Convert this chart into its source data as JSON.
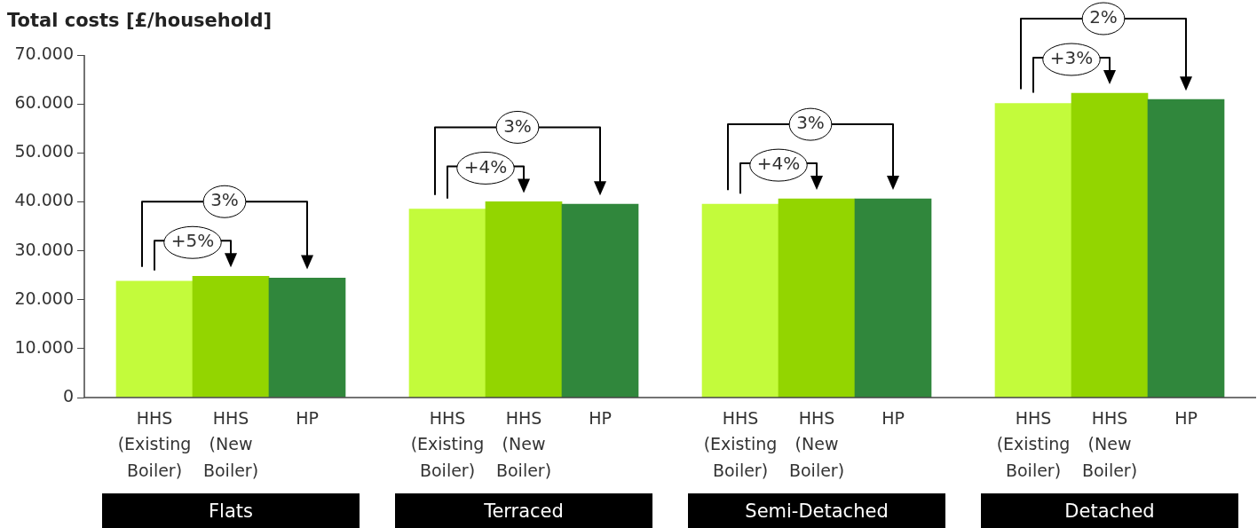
{
  "chart_data": [
    {
      "type": "bar",
      "title": "Flats",
      "ylabel": "Total costs [£/household]",
      "categories": [
        "HHS (Existing Boiler)",
        "HHS (New Boiler)",
        "HP"
      ],
      "values": [
        23800,
        24800,
        24400
      ],
      "colors": [
        "#c3fb3b",
        "#93d500",
        "#30873c"
      ],
      "ylim": [
        0,
        70000
      ],
      "yticks": [
        0,
        {
          "value": 10000,
          "label": "10.000"
        },
        {
          "value": 20000,
          "label": "20.000"
        },
        {
          "value": 30000,
          "label": "30.000"
        },
        {
          "value": 40000,
          "label": "40.000"
        },
        {
          "value": 50000,
          "label": "50.000"
        },
        {
          "value": 60000,
          "label": "60.000"
        },
        {
          "value": 70000,
          "label": "70.000"
        }
      ],
      "grid": false,
      "legend": false,
      "annotations": [
        "+5%",
        "3%"
      ]
    },
    {
      "type": "bar",
      "title": "Terraced",
      "categories": [
        "HHS (Existing Boiler)",
        "HHS (New Boiler)",
        "HP"
      ],
      "values": [
        38500,
        40000,
        39500
      ],
      "colors": [
        "#c3fb3b",
        "#93d500",
        "#30873c"
      ],
      "ylim": [
        0,
        70000
      ],
      "tick_labels": "x",
      "grid": false,
      "legend": false,
      "annotations": [
        "+4%",
        "3%"
      ]
    },
    {
      "type": "bar",
      "title": "Semi-Detached",
      "categories": [
        "HHS (Existing Boiler)",
        "HHS (New Boiler)",
        "HP"
      ],
      "values": [
        39500,
        40600,
        40600
      ],
      "colors": [
        "#c3fb3b",
        "#93d500",
        "#30873c"
      ],
      "ylim": [
        0,
        70000
      ],
      "tick_labels": "x",
      "grid": false,
      "legend": false,
      "annotations": [
        "+4%",
        "3%"
      ]
    },
    {
      "type": "bar",
      "title": "Detached",
      "categories": [
        "HHS (Existing Boiler)",
        "HHS (New Boiler)",
        "HP"
      ],
      "values": [
        60100,
        62200,
        60900
      ],
      "colors": [
        "#c3fb3b",
        "#93d500",
        "#30873c"
      ],
      "ylim": [
        0,
        70000
      ],
      "tick_labels": "x",
      "grid": false,
      "legend": false,
      "annotations": [
        "+3%",
        "2%"
      ]
    }
  ]
}
